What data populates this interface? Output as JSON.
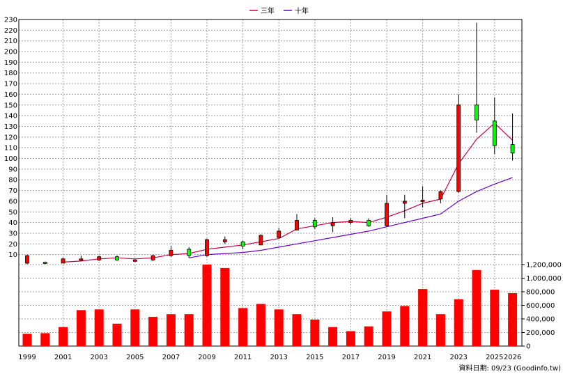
{
  "chart_data": {
    "type": "candlestick+bar",
    "legend": {
      "placement": "top-center",
      "items": [
        {
          "label": "三年",
          "color": "#cc0044"
        },
        {
          "label": "十年",
          "color": "#6600cc"
        }
      ]
    },
    "footer": "資料日期: 09/23 (Goodinfo.tw)",
    "x_tick_labels": [
      "1999",
      "2001",
      "2003",
      "2005",
      "2007",
      "2009",
      "2011",
      "2013",
      "2015",
      "2017",
      "2019",
      "2021",
      "2023",
      "2025",
      "2026"
    ],
    "price_axis": {
      "ylim": [
        0,
        230
      ],
      "ticks": [
        "10",
        "20",
        "30",
        "40",
        "50",
        "60",
        "70",
        "80",
        "90",
        "100",
        "110",
        "120",
        "130",
        "140",
        "150",
        "160",
        "170",
        "180",
        "190",
        "200",
        "210",
        "220",
        "230"
      ]
    },
    "volume_axis": {
      "ylim": [
        0,
        1200000
      ],
      "ticks": [
        "0",
        "200,000",
        "400,000",
        "600,000",
        "800,000",
        "1,000,000",
        "1,200,000"
      ]
    },
    "years": [
      1999,
      2000,
      2001,
      2002,
      2003,
      2004,
      2005,
      2006,
      2007,
      2008,
      2009,
      2010,
      2011,
      2012,
      2013,
      2014,
      2015,
      2016,
      2017,
      2018,
      2019,
      2020,
      2021,
      2022,
      2023,
      2024,
      2025,
      2026
    ],
    "candles": [
      {
        "year": 1999,
        "open": 2,
        "close": 9,
        "high": 10,
        "low": 1
      },
      {
        "year": 2000,
        "open": 3,
        "close": 2,
        "high": 3.5,
        "low": 1
      },
      {
        "year": 2001,
        "open": 2,
        "close": 6,
        "high": 7,
        "low": 2
      },
      {
        "year": 2002,
        "open": 6,
        "close": 6,
        "high": 9,
        "low": 4
      },
      {
        "year": 2003,
        "open": 5,
        "close": 8,
        "high": 9,
        "low": 4
      },
      {
        "year": 2004,
        "open": 8,
        "close": 5,
        "high": 9,
        "low": 4
      },
      {
        "year": 2005,
        "open": 5,
        "close": 5,
        "high": 6,
        "low": 4
      },
      {
        "year": 2006,
        "open": 5,
        "close": 9,
        "high": 10,
        "low": 4
      },
      {
        "year": 2007,
        "open": 9,
        "close": 14,
        "high": 18,
        "low": 8
      },
      {
        "year": 2008,
        "open": 15,
        "close": 9,
        "high": 17,
        "low": 7
      },
      {
        "year": 2009,
        "open": 9,
        "close": 24,
        "high": 25,
        "low": 8
      },
      {
        "year": 2010,
        "open": 22,
        "close": 24,
        "high": 27,
        "low": 20
      },
      {
        "year": 2011,
        "open": 22,
        "close": 18,
        "high": 23,
        "low": 15
      },
      {
        "year": 2012,
        "open": 19,
        "close": 28,
        "high": 29,
        "low": 19
      },
      {
        "year": 2013,
        "open": 26,
        "close": 32,
        "high": 35,
        "low": 25
      },
      {
        "year": 2014,
        "open": 33,
        "close": 42,
        "high": 48,
        "low": 33
      },
      {
        "year": 2015,
        "open": 42,
        "close": 36,
        "high": 44,
        "low": 34
      },
      {
        "year": 2016,
        "open": 37,
        "close": 40,
        "high": 45,
        "low": 31
      },
      {
        "year": 2017,
        "open": 40,
        "close": 42,
        "high": 44,
        "low": 38
      },
      {
        "year": 2018,
        "open": 42,
        "close": 37,
        "high": 44,
        "low": 36
      },
      {
        "year": 2019,
        "open": 37,
        "close": 58,
        "high": 66,
        "low": 36
      },
      {
        "year": 2020,
        "open": 58,
        "close": 60,
        "high": 66,
        "low": 44
      },
      {
        "year": 2021,
        "open": 60,
        "close": 61,
        "high": 74,
        "low": 54
      },
      {
        "year": 2022,
        "open": 62,
        "close": 69,
        "high": 70,
        "low": 58
      },
      {
        "year": 2023,
        "open": 69,
        "close": 150,
        "high": 160,
        "low": 68
      },
      {
        "year": 2024,
        "open": 150,
        "close": 136,
        "high": 227,
        "low": 124
      },
      {
        "year": 2025,
        "open": 135,
        "close": 112,
        "high": 157,
        "low": 104
      },
      {
        "year": 2026,
        "open": 113,
        "close": 105,
        "high": 142,
        "low": 98
      }
    ],
    "series": [
      {
        "name": "三年",
        "color": "#cc0044",
        "values": [
          null,
          null,
          3,
          4,
          6,
          7,
          6,
          7,
          10,
          11,
          15,
          17,
          19,
          22,
          25,
          34,
          37,
          40,
          41,
          40,
          45,
          51,
          58,
          62,
          95,
          118,
          133,
          117
        ]
      },
      {
        "name": "十年",
        "color": "#6600cc",
        "values": [
          null,
          null,
          null,
          null,
          null,
          null,
          null,
          null,
          null,
          7,
          10,
          11,
          12,
          14,
          17,
          20,
          23,
          26,
          29,
          32,
          36,
          40,
          44,
          48,
          60,
          69,
          76,
          82
        ]
      }
    ],
    "volume": [
      180000,
      190000,
      280000,
      530000,
      540000,
      330000,
      540000,
      430000,
      470000,
      470000,
      1200000,
      1150000,
      560000,
      620000,
      540000,
      470000,
      390000,
      280000,
      220000,
      290000,
      510000,
      590000,
      840000,
      470000,
      690000,
      1120000,
      830000,
      780000
    ],
    "colors": {
      "up": "#ff0000",
      "down": "#00ff00",
      "volume": "#ff0000",
      "grid": "#a0a0a0"
    }
  }
}
